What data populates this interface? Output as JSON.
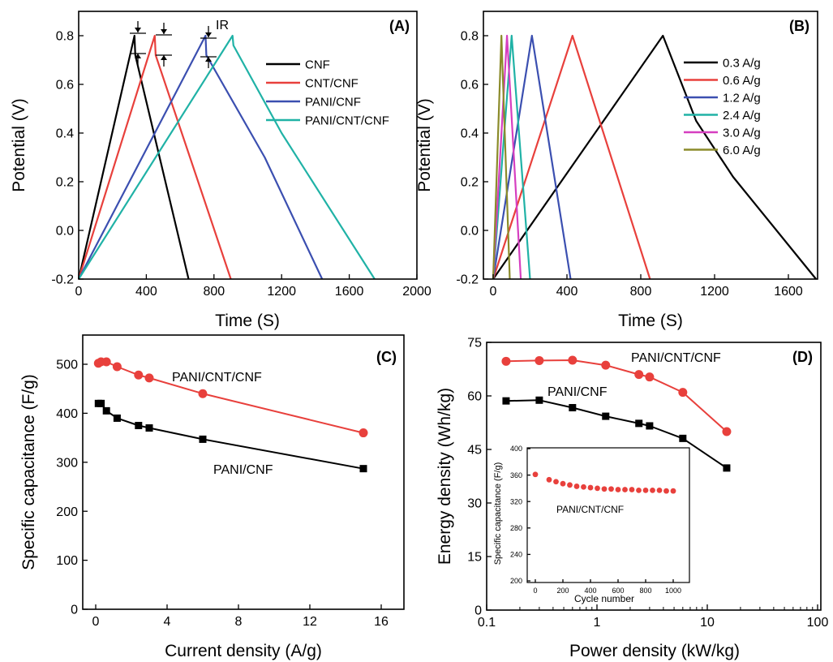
{
  "figure": {
    "panels": [
      {
        "label": "(A)",
        "xlabel": "Time (S)",
        "ylabel": "Potential (V)",
        "xticks": [
          "0",
          "400",
          "800",
          "1200",
          "1600",
          "2000"
        ],
        "yticks": [
          "-0.2",
          "0.0",
          "0.2",
          "0.4",
          "0.6",
          "0.8"
        ],
        "annotation": "IR"
      },
      {
        "label": "(B)",
        "xlabel": "Time (S)",
        "ylabel": "Potential (V)",
        "xticks": [
          "0",
          "400",
          "800",
          "1200",
          "1600"
        ],
        "yticks": [
          "-0.2",
          "0.0",
          "0.2",
          "0.4",
          "0.6",
          "0.8"
        ]
      },
      {
        "label": "(C)",
        "xlabel": "Current density (A/g)",
        "ylabel": "Specific capacitance (F/g)",
        "xticks": [
          "0",
          "4",
          "8",
          "12",
          "16"
        ],
        "yticks": [
          "0",
          "100",
          "200",
          "300",
          "400",
          "500"
        ]
      },
      {
        "label": "(D)",
        "xlabel": "Power density (kW/kg)",
        "ylabel": "Energy density (Wh/kg)",
        "xticks": [
          "0.1",
          "1",
          "10",
          "100"
        ],
        "yticks": [
          "0",
          "15",
          "30",
          "45",
          "60",
          "75"
        ],
        "inset": {
          "xlabel": "Cycle number",
          "ylabel": "Specific capacitance (F/g)",
          "xticks": [
            "0",
            "200",
            "400",
            "600",
            "800",
            "1000"
          ],
          "yticks": [
            "200",
            "240",
            "280",
            "320",
            "360",
            "400"
          ],
          "label": "PANI/CNT/CNF"
        }
      }
    ]
  },
  "chart_data": [
    {
      "type": "line",
      "title": "(A)",
      "xlabel": "Time (S)",
      "ylabel": "Potential (V)",
      "xlim": [
        0,
        2000
      ],
      "ylim": [
        -0.2,
        0.85
      ],
      "legend_position": "right",
      "series": [
        {
          "name": "CNF",
          "color": "#000000",
          "x": [
            0,
            330,
            335,
            650
          ],
          "y": [
            -0.2,
            0.8,
            0.72,
            -0.2
          ]
        },
        {
          "name": "CNT/CNF",
          "color": "#e8403c",
          "x": [
            0,
            450,
            455,
            900
          ],
          "y": [
            -0.2,
            0.8,
            0.72,
            -0.2
          ]
        },
        {
          "name": "PANI/CNF",
          "color": "#3b4fb0",
          "x": [
            0,
            750,
            755,
            1100,
            1440
          ],
          "y": [
            -0.2,
            0.8,
            0.72,
            0.3,
            -0.2
          ]
        },
        {
          "name": "PANI/CNT/CNF",
          "color": "#20b2a6",
          "x": [
            0,
            910,
            915,
            1200,
            1750
          ],
          "y": [
            -0.2,
            0.8,
            0.76,
            0.4,
            -0.2
          ]
        }
      ]
    },
    {
      "type": "line",
      "title": "(B)",
      "xlabel": "Time (S)",
      "ylabel": "Potential (V)",
      "xlim": [
        -30,
        1780
      ],
      "ylim": [
        -0.2,
        0.85
      ],
      "legend_position": "right",
      "series": [
        {
          "name": "0.3 A/g",
          "color": "#000000",
          "x": [
            0,
            920,
            1100,
            1300,
            1750
          ],
          "y": [
            -0.2,
            0.8,
            0.45,
            0.22,
            -0.2
          ]
        },
        {
          "name": "0.6 A/g",
          "color": "#e8403c",
          "x": [
            0,
            430,
            850
          ],
          "y": [
            -0.2,
            0.8,
            -0.2
          ]
        },
        {
          "name": "1.2 A/g",
          "color": "#3b4fb0",
          "x": [
            0,
            210,
            420
          ],
          "y": [
            -0.2,
            0.8,
            -0.2
          ]
        },
        {
          "name": "2.4 A/g",
          "color": "#20b2a6",
          "x": [
            0,
            100,
            200
          ],
          "y": [
            -0.2,
            0.8,
            -0.2
          ]
        },
        {
          "name": "3.0 A/g",
          "color": "#d63fc0",
          "x": [
            0,
            75,
            150
          ],
          "y": [
            -0.2,
            0.8,
            -0.2
          ]
        },
        {
          "name": "6.0 A/g",
          "color": "#8b8b2a",
          "x": [
            0,
            45,
            90
          ],
          "y": [
            -0.2,
            0.8,
            -0.2
          ]
        }
      ]
    },
    {
      "type": "line",
      "title": "(C)",
      "xlabel": "Current density (A/g)",
      "ylabel": "Specific capacitance (F/g)",
      "xlim": [
        -1,
        17
      ],
      "ylim": [
        0,
        550
      ],
      "series": [
        {
          "name": "PANI/CNT/CNF",
          "color": "#e8403c",
          "marker": "circle",
          "x": [
            0.15,
            0.3,
            0.6,
            1.2,
            2.4,
            3.0,
            6.0,
            15.0
          ],
          "y": [
            502,
            505,
            505,
            495,
            478,
            472,
            440,
            360
          ]
        },
        {
          "name": "PANI/CNF",
          "color": "#000000",
          "marker": "square",
          "x": [
            0.15,
            0.3,
            0.6,
            1.2,
            2.4,
            3.0,
            6.0,
            15.0
          ],
          "y": [
            420,
            420,
            405,
            390,
            375,
            370,
            347,
            287
          ]
        }
      ]
    },
    {
      "type": "line",
      "title": "(D)",
      "xlabel": "Power density (kW/kg)",
      "ylabel": "Energy density (Wh/kg)",
      "xscale": "log",
      "xlim": [
        0.1,
        100
      ],
      "ylim": [
        0,
        75
      ],
      "series": [
        {
          "name": "PANI/CNT/CNF",
          "color": "#e8403c",
          "marker": "circle",
          "x": [
            0.15,
            0.3,
            0.6,
            1.2,
            2.4,
            3.0,
            6.0,
            15.0
          ],
          "y": [
            69.7,
            69.9,
            70.0,
            68.6,
            66.0,
            65.3,
            61.0,
            50.0
          ]
        },
        {
          "name": "PANI/CNF",
          "color": "#000000",
          "marker": "square",
          "x": [
            0.15,
            0.3,
            0.6,
            1.2,
            2.4,
            3.0,
            6.0,
            15.0
          ],
          "y": [
            58.6,
            58.8,
            56.7,
            54.3,
            52.3,
            51.6,
            48.1,
            39.8
          ]
        }
      ],
      "inset": {
        "type": "scatter",
        "xlabel": "Cycle number",
        "ylabel": "Specific capacitance (F/g)",
        "xlim": [
          -50,
          1100
        ],
        "ylim": [
          200,
          400
        ],
        "series": [
          {
            "name": "PANI/CNT/CNF",
            "color": "#e8403c",
            "x": [
              0,
              100,
              150,
              200,
              250,
              300,
              350,
              400,
              450,
              500,
              550,
              600,
              650,
              700,
              750,
              800,
              850,
              900,
              950,
              1000
            ],
            "y": [
              361,
              353,
              350,
              347,
              345,
              343,
              342,
              341,
              340,
              339,
              339,
              338,
              338,
              338,
              337,
              337,
              337,
              337,
              336,
              336
            ]
          }
        ]
      }
    }
  ]
}
